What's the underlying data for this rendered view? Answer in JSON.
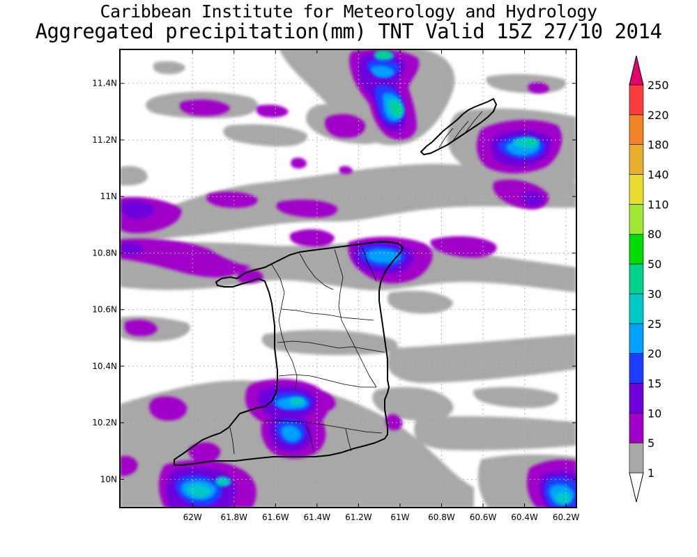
{
  "header": {
    "title_line1": "Caribbean Institute for Meteorology and Hydrology",
    "title_line2": "Aggregated precipitation(mm) TNT Valid 15Z 27/10 2014"
  },
  "map": {
    "lon_range": [
      -62.35,
      -60.15
    ],
    "lat_range": [
      9.9,
      11.52
    ],
    "lon_ticks": [
      {
        "value": -62.0,
        "label": "62W"
      },
      {
        "value": -61.8,
        "label": "61.8W"
      },
      {
        "value": -61.6,
        "label": "61.6W"
      },
      {
        "value": -61.4,
        "label": "61.4W"
      },
      {
        "value": -61.2,
        "label": "61.2W"
      },
      {
        "value": -61.0,
        "label": "61W"
      },
      {
        "value": -60.8,
        "label": "60.8W"
      },
      {
        "value": -60.6,
        "label": "60.6W"
      },
      {
        "value": -60.4,
        "label": "60.4W"
      },
      {
        "value": -60.2,
        "label": "60.2W"
      }
    ],
    "lat_ticks": [
      {
        "value": 10.0,
        "label": "10N"
      },
      {
        "value": 10.2,
        "label": "10.2N"
      },
      {
        "value": 10.4,
        "label": "10.4N"
      },
      {
        "value": 10.6,
        "label": "10.6N"
      },
      {
        "value": 10.8,
        "label": "10.8N"
      },
      {
        "value": 11.0,
        "label": "11N"
      },
      {
        "value": 11.2,
        "label": "11.2N"
      },
      {
        "value": 11.4,
        "label": "11.4N"
      }
    ],
    "grid": true
  },
  "colorbar": {
    "levels": [
      {
        "label": "1",
        "color": "#a8a8a8"
      },
      {
        "label": "5",
        "color": "#a000c8"
      },
      {
        "label": "10",
        "color": "#6e00dc"
      },
      {
        "label": "15",
        "color": "#1e3cff"
      },
      {
        "label": "20",
        "color": "#00a0ff"
      },
      {
        "label": "25",
        "color": "#00c8c8"
      },
      {
        "label": "30",
        "color": "#00d28c"
      },
      {
        "label": "50",
        "color": "#00dc00"
      },
      {
        "label": "80",
        "color": "#a0e632"
      },
      {
        "label": "110",
        "color": "#e6dc32"
      },
      {
        "label": "140",
        "color": "#e6af2d"
      },
      {
        "label": "180",
        "color": "#f08228"
      },
      {
        "label": "220",
        "color": "#fa3c3c"
      },
      {
        "label": "250",
        "color": "#f00082"
      }
    ],
    "low_color": "#ffffff",
    "high_color": "#e6006e"
  }
}
